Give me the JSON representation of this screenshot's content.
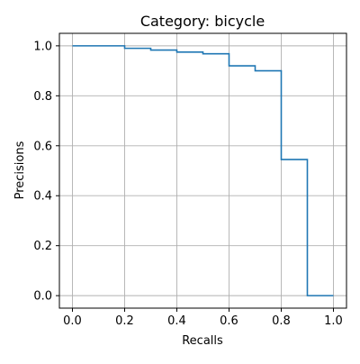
{
  "chart_data": {
    "type": "line",
    "title": "Category: bicycle",
    "xlabel": "Recalls",
    "ylabel": "Precisions",
    "xlim": [
      -0.05,
      1.05
    ],
    "ylim": [
      -0.05,
      1.05
    ],
    "xticks": [
      0.0,
      0.2,
      0.4,
      0.6,
      0.8,
      1.0
    ],
    "xtick_labels": [
      "0.0",
      "0.2",
      "0.4",
      "0.6",
      "0.8",
      "1.0"
    ],
    "yticks": [
      0.0,
      0.2,
      0.4,
      0.6,
      0.8,
      1.0
    ],
    "ytick_labels": [
      "0.0",
      "0.2",
      "0.4",
      "0.6",
      "0.8",
      "1.0"
    ],
    "grid": true,
    "step": "post",
    "series": [
      {
        "color": "#1f77b4",
        "x": [
          0.0,
          0.2,
          0.3,
          0.4,
          0.5,
          0.6,
          0.7,
          0.8,
          0.9,
          1.0
        ],
        "y": [
          1.0,
          0.99,
          0.983,
          0.975,
          0.968,
          0.92,
          0.9,
          0.545,
          0.0,
          0.0
        ]
      }
    ]
  }
}
